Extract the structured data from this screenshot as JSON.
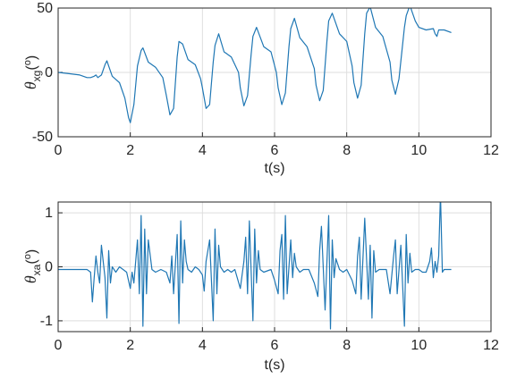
{
  "chart_data": [
    {
      "type": "line",
      "ylabel": {
        "symbol": "θ",
        "subscript": "xg",
        "unit_open": "(",
        "unit_sup": "o",
        "unit_close": ")"
      },
      "xlabel": "t(s)",
      "xlim": [
        0,
        12
      ],
      "ylim": [
        -50,
        50
      ],
      "xticks": [
        "0",
        "2",
        "4",
        "6",
        "8",
        "10",
        "12"
      ],
      "yticks": [
        "-50",
        "0",
        "50"
      ],
      "grid": true,
      "color": "#1f77b4",
      "series": [
        {
          "x": [
            0,
            0.3,
            0.6,
            0.8,
            0.9,
            1.0,
            1.05,
            1.1,
            1.2,
            1.3,
            1.35,
            1.4,
            1.5,
            1.7,
            1.85,
            1.95,
            2.0,
            2.1,
            2.2,
            2.3,
            2.35,
            2.5,
            2.7,
            2.9,
            3.0,
            3.1,
            3.2,
            3.3,
            3.35,
            3.45,
            3.6,
            3.8,
            3.95,
            4.0,
            4.1,
            4.2,
            4.3,
            4.35,
            4.45,
            4.6,
            4.8,
            5.0,
            5.05,
            5.15,
            5.25,
            5.35,
            5.4,
            5.5,
            5.7,
            5.9,
            6.05,
            6.1,
            6.2,
            6.3,
            6.4,
            6.45,
            6.55,
            6.7,
            6.9,
            7.1,
            7.15,
            7.25,
            7.35,
            7.45,
            7.5,
            7.6,
            7.8,
            8.0,
            8.15,
            8.2,
            8.3,
            8.4,
            8.5,
            8.55,
            8.65,
            8.8,
            9.0,
            9.2,
            9.25,
            9.35,
            9.45,
            9.6,
            9.65,
            9.75,
            9.9,
            10.0,
            10.2,
            10.4,
            10.45,
            10.5,
            10.55,
            10.6,
            10.7,
            10.9
          ],
          "y": [
            0,
            -1,
            -2,
            -4,
            -4,
            -3,
            -2,
            -4,
            -2,
            6,
            9,
            5,
            -3,
            -8,
            -20,
            -35,
            -39,
            -25,
            5,
            17,
            19,
            8,
            4,
            -4,
            -18,
            -33,
            -28,
            12,
            24,
            22,
            10,
            6,
            -5,
            -12,
            -28,
            -25,
            8,
            21,
            30,
            16,
            12,
            0,
            -12,
            -26,
            -18,
            14,
            28,
            35,
            20,
            16,
            0,
            -12,
            -25,
            -16,
            20,
            34,
            42,
            27,
            20,
            3,
            -10,
            -22,
            -14,
            24,
            40,
            46,
            30,
            24,
            5,
            -8,
            -20,
            -10,
            30,
            46,
            51,
            35,
            28,
            8,
            -6,
            -17,
            -5,
            35,
            44,
            52,
            40,
            35,
            33,
            34,
            30,
            28,
            33,
            33,
            33,
            31
          ]
        }
      ]
    },
    {
      "type": "line",
      "ylabel": {
        "symbol": "θ",
        "subscript": "xa",
        "unit_open": "(",
        "unit_sup": "o",
        "unit_close": ")"
      },
      "xlabel": "t(s)",
      "xlim": [
        0,
        12
      ],
      "ylim": [
        -1.2,
        1.2
      ],
      "xticks": [
        "0",
        "2",
        "4",
        "6",
        "8",
        "10",
        "12"
      ],
      "yticks": [
        "-1",
        "0",
        "1"
      ],
      "grid": true,
      "color": "#1f77b4",
      "series": [
        {
          "x": [
            0,
            0.8,
            0.9,
            0.95,
            1.0,
            1.05,
            1.1,
            1.15,
            1.2,
            1.3,
            1.35,
            1.4,
            1.45,
            1.5,
            1.6,
            1.7,
            1.8,
            1.9,
            2.0,
            2.05,
            2.1,
            2.2,
            2.25,
            2.3,
            2.35,
            2.4,
            2.45,
            2.5,
            2.6,
            2.7,
            2.85,
            3.0,
            3.1,
            3.15,
            3.2,
            3.3,
            3.35,
            3.4,
            3.45,
            3.5,
            3.55,
            3.6,
            3.7,
            3.8,
            3.9,
            4.0,
            4.05,
            4.1,
            4.2,
            4.3,
            4.35,
            4.4,
            4.45,
            4.5,
            4.6,
            4.7,
            4.8,
            4.9,
            5.05,
            5.15,
            5.2,
            5.25,
            5.3,
            5.4,
            5.45,
            5.5,
            5.55,
            5.6,
            5.7,
            5.9,
            6.0,
            6.1,
            6.15,
            6.2,
            6.25,
            6.3,
            6.35,
            6.45,
            6.5,
            6.55,
            6.6,
            6.7,
            6.8,
            6.95,
            7.1,
            7.2,
            7.25,
            7.3,
            7.4,
            7.5,
            7.55,
            7.6,
            7.65,
            7.7,
            7.8,
            7.9,
            8.0,
            8.15,
            8.25,
            8.3,
            8.35,
            8.4,
            8.5,
            8.6,
            8.65,
            8.7,
            8.75,
            8.8,
            8.9,
            9.1,
            9.2,
            9.3,
            9.35,
            9.4,
            9.5,
            9.6,
            9.65,
            9.7,
            9.75,
            9.8,
            9.9,
            10.0,
            10.1,
            10.2,
            10.3,
            10.35,
            10.4,
            10.45,
            10.5,
            10.55,
            10.6,
            10.65,
            10.7,
            10.8,
            10.9
          ],
          "y": [
            -0.05,
            -0.05,
            -0.1,
            -0.65,
            -0.2,
            0.2,
            -0.1,
            -0.3,
            0.4,
            -0.2,
            -0.95,
            0.3,
            -0.3,
            0,
            -0.1,
            0,
            -0.05,
            -0.1,
            -0.4,
            -0.1,
            -0.3,
            0.5,
            -0.5,
            0.95,
            -1.1,
            0.7,
            -0.5,
            0.5,
            -0.05,
            -0.1,
            -0.05,
            -0.1,
            -0.3,
            0.2,
            -0.5,
            0.6,
            -1.05,
            0.85,
            -0.3,
            0.5,
            0.1,
            -0.05,
            -0.1,
            0,
            -0.05,
            -0.15,
            -0.45,
            0.1,
            0.5,
            -1.0,
            0.7,
            -0.5,
            0.4,
            0,
            -0.1,
            -0.05,
            -0.1,
            -0.05,
            -0.4,
            0.1,
            0.55,
            -0.5,
            0.85,
            -1.0,
            0.7,
            -0.3,
            0.3,
            -0.05,
            -0.1,
            -0.05,
            -0.25,
            -0.5,
            0.3,
            0.6,
            -0.6,
            0.95,
            -0.5,
            0.5,
            -0.2,
            0.25,
            0,
            -0.1,
            -0.05,
            -0.05,
            -0.3,
            -0.55,
            0.3,
            0.75,
            -0.8,
            0.95,
            -1.15,
            0.5,
            -0.2,
            0.15,
            -0.05,
            -0.1,
            -0.05,
            -0.25,
            -0.5,
            0.2,
            0.55,
            -0.6,
            0.9,
            -0.6,
            0.4,
            -0.95,
            0.3,
            -0.1,
            -0.05,
            -0.05,
            -0.5,
            0.2,
            0.5,
            -0.5,
            0.4,
            -1.1,
            0.6,
            -0.3,
            0.25,
            -0.1,
            -0.05,
            -0.05,
            -0.1,
            -0.1,
            0.1,
            0.35,
            -0.2,
            0.1,
            -0.1,
            0.2,
            1.35,
            -0.1,
            -0.05,
            -0.05,
            -0.05
          ]
        }
      ]
    }
  ]
}
